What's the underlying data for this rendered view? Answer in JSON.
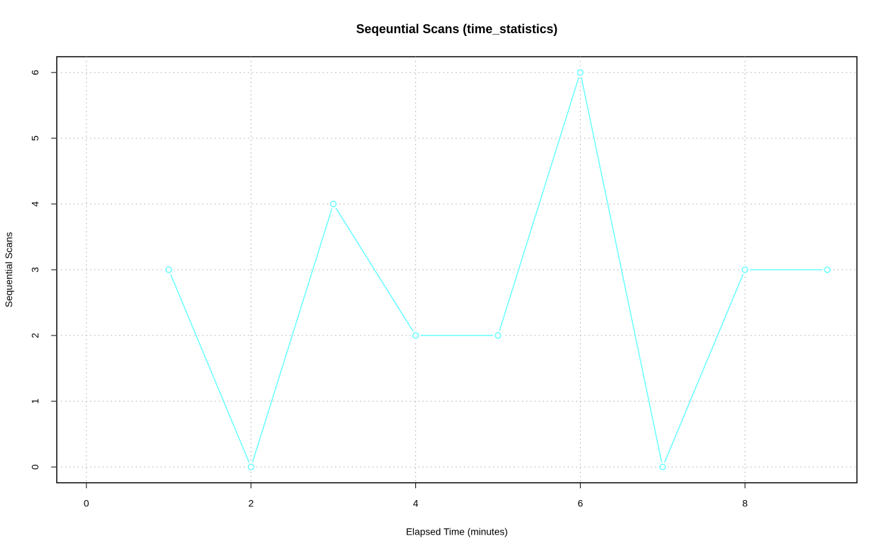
{
  "chart_data": {
    "type": "line",
    "title": "Seqeuntial Scans (time_statistics)",
    "x_label": "Elapsed Time (minutes)",
    "y_label": "Sequential Scans",
    "x": [
      1,
      2,
      3,
      4,
      5,
      6,
      7,
      8,
      9
    ],
    "series": [
      {
        "name": "Sequential Scans",
        "color": "#66ffff",
        "values": [
          3,
          0,
          4,
          2,
          2,
          6,
          0,
          3,
          3
        ]
      }
    ],
    "xlim": [
      -0.36,
      9.36
    ],
    "ylim": [
      -0.24,
      6.24
    ],
    "xticks": [
      0,
      2,
      4,
      6,
      8
    ],
    "yticks": [
      0,
      1,
      2,
      3,
      4,
      5,
      6
    ],
    "grid": true
  }
}
